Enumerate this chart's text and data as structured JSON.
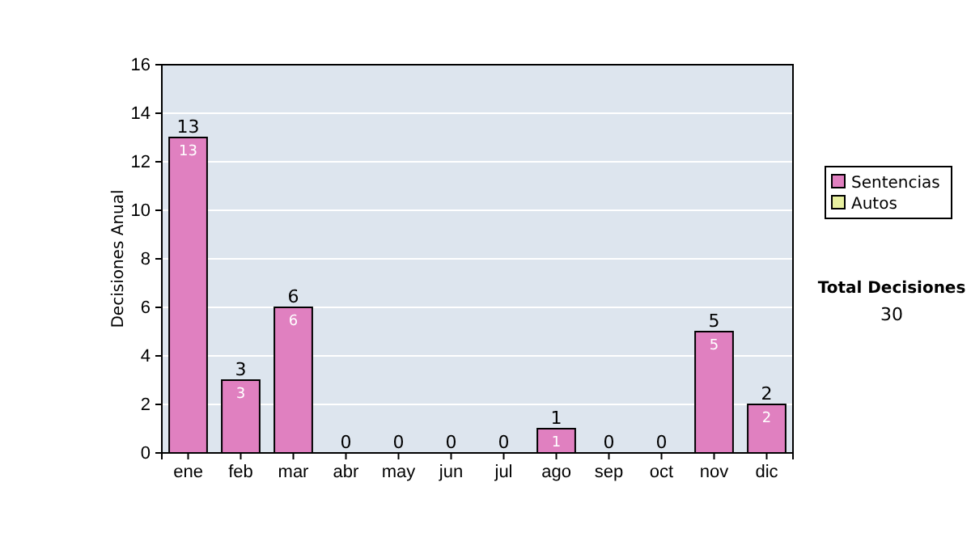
{
  "chart_data": {
    "type": "bar",
    "ylabel": "Decisiones Anual",
    "categories": [
      "ene",
      "feb",
      "mar",
      "abr",
      "may",
      "jun",
      "jul",
      "ago",
      "sep",
      "oct",
      "nov",
      "dic"
    ],
    "series": [
      {
        "name": "Sentencias",
        "color": "#e080c0",
        "values": [
          13,
          3,
          6,
          0,
          0,
          0,
          0,
          1,
          0,
          0,
          5,
          2
        ],
        "value_labels": [
          "13",
          "3",
          "6",
          null,
          null,
          null,
          null,
          "1",
          null,
          null,
          "5",
          "2"
        ]
      },
      {
        "name": "Autos",
        "color": "#e8f0a0",
        "values": [
          0,
          0,
          0,
          0,
          0,
          0,
          0,
          0,
          0,
          0,
          0,
          0
        ]
      }
    ],
    "stacked": true,
    "totals": [
      "13",
      "3",
      "6",
      "0",
      "0",
      "0",
      "0",
      "1",
      "0",
      "0",
      "5",
      "2"
    ],
    "ylim": [
      0,
      16
    ],
    "yticks": [
      0,
      2,
      4,
      6,
      8,
      10,
      12,
      14,
      16
    ],
    "grid": "y",
    "legend": "right",
    "annotations": [
      "Total Decisiones",
      "30"
    ]
  }
}
